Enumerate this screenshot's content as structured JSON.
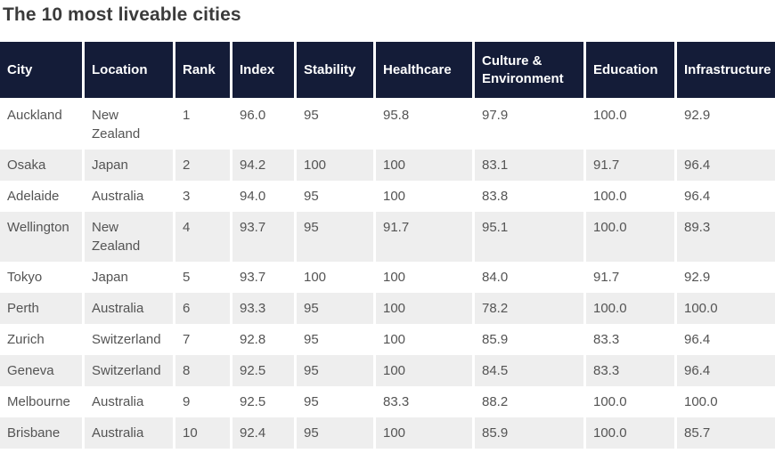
{
  "title": "The 10 most liveable cities",
  "colors": {
    "header_bg": "#141c38",
    "header_text": "#ffffff",
    "row_alt_bg": "#eeeeee",
    "body_text": "#545454",
    "title_text": "#3b3b3b"
  },
  "table": {
    "columns": [
      {
        "key": "city",
        "label": "City"
      },
      {
        "key": "location",
        "label": "Location"
      },
      {
        "key": "rank",
        "label": "Rank"
      },
      {
        "key": "index",
        "label": "Index"
      },
      {
        "key": "stability",
        "label": "Stability"
      },
      {
        "key": "healthcare",
        "label": "Healthcare"
      },
      {
        "key": "culture_environment",
        "label": "Culture & Environment"
      },
      {
        "key": "education",
        "label": "Education"
      },
      {
        "key": "infrastructure",
        "label": "Infrastructure"
      }
    ],
    "rows": [
      {
        "city": "Auckland",
        "location": "New Zealand",
        "rank": "1",
        "index": "96.0",
        "stability": "95",
        "healthcare": "95.8",
        "culture_environment": "97.9",
        "education": "100.0",
        "infrastructure": "92.9"
      },
      {
        "city": "Osaka",
        "location": "Japan",
        "rank": "2",
        "index": "94.2",
        "stability": "100",
        "healthcare": "100",
        "culture_environment": "83.1",
        "education": "91.7",
        "infrastructure": "96.4"
      },
      {
        "city": "Adelaide",
        "location": "Australia",
        "rank": "3",
        "index": "94.0",
        "stability": "95",
        "healthcare": "100",
        "culture_environment": "83.8",
        "education": "100.0",
        "infrastructure": "96.4"
      },
      {
        "city": "Wellington",
        "location": "New Zealand",
        "rank": "4",
        "index": "93.7",
        "stability": "95",
        "healthcare": "91.7",
        "culture_environment": "95.1",
        "education": "100.0",
        "infrastructure": "89.3"
      },
      {
        "city": "Tokyo",
        "location": "Japan",
        "rank": "5",
        "index": "93.7",
        "stability": "100",
        "healthcare": "100",
        "culture_environment": "84.0",
        "education": "91.7",
        "infrastructure": "92.9"
      },
      {
        "city": "Perth",
        "location": "Australia",
        "rank": "6",
        "index": "93.3",
        "stability": "95",
        "healthcare": "100",
        "culture_environment": "78.2",
        "education": "100.0",
        "infrastructure": "100.0"
      },
      {
        "city": "Zurich",
        "location": "Switzerland",
        "rank": "7",
        "index": "92.8",
        "stability": "95",
        "healthcare": "100",
        "culture_environment": "85.9",
        "education": "83.3",
        "infrastructure": "96.4"
      },
      {
        "city": "Geneva",
        "location": "Switzerland",
        "rank": "8",
        "index": "92.5",
        "stability": "95",
        "healthcare": "100",
        "culture_environment": "84.5",
        "education": "83.3",
        "infrastructure": "96.4"
      },
      {
        "city": "Melbourne",
        "location": "Australia",
        "rank": "9",
        "index": "92.5",
        "stability": "95",
        "healthcare": "83.3",
        "culture_environment": "88.2",
        "education": "100.0",
        "infrastructure": "100.0"
      },
      {
        "city": "Brisbane",
        "location": "Australia",
        "rank": "10",
        "index": "92.4",
        "stability": "95",
        "healthcare": "100",
        "culture_environment": "85.9",
        "education": "100.0",
        "infrastructure": "85.7"
      }
    ]
  },
  "chart_data": {
    "type": "table",
    "title": "The 10 most liveable cities",
    "columns": [
      "City",
      "Location",
      "Rank",
      "Index",
      "Stability",
      "Healthcare",
      "Culture & Environment",
      "Education",
      "Infrastructure"
    ],
    "rows": [
      [
        "Auckland",
        "New Zealand",
        1,
        96.0,
        95,
        95.8,
        97.9,
        100.0,
        92.9
      ],
      [
        "Osaka",
        "Japan",
        2,
        94.2,
        100,
        100,
        83.1,
        91.7,
        96.4
      ],
      [
        "Adelaide",
        "Australia",
        3,
        94.0,
        95,
        100,
        83.8,
        100.0,
        96.4
      ],
      [
        "Wellington",
        "New Zealand",
        4,
        93.7,
        95,
        91.7,
        95.1,
        100.0,
        89.3
      ],
      [
        "Tokyo",
        "Japan",
        5,
        93.7,
        100,
        100,
        84.0,
        91.7,
        92.9
      ],
      [
        "Perth",
        "Australia",
        6,
        93.3,
        95,
        100,
        78.2,
        100.0,
        100.0
      ],
      [
        "Zurich",
        "Switzerland",
        7,
        92.8,
        95,
        100,
        85.9,
        83.3,
        96.4
      ],
      [
        "Geneva",
        "Switzerland",
        8,
        92.5,
        95,
        100,
        84.5,
        83.3,
        96.4
      ],
      [
        "Melbourne",
        "Australia",
        9,
        92.5,
        95,
        83.3,
        88.2,
        100.0,
        100.0
      ],
      [
        "Brisbane",
        "Australia",
        10,
        92.4,
        95,
        100,
        85.9,
        100.0,
        85.7
      ]
    ],
    "layout_hints": {
      "striped_rows": "even ranks shaded",
      "header_style": "dark navy background, white bold text",
      "grid": "thin white gaps between columns"
    }
  }
}
